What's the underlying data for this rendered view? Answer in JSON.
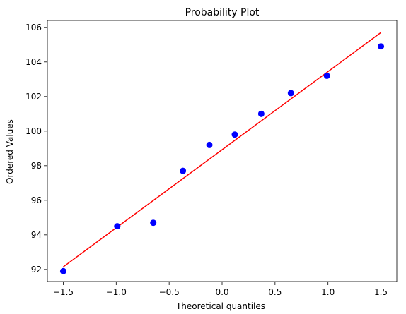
{
  "chart_data": {
    "type": "scatter",
    "title": "Probability Plot",
    "xlabel": "Theoretical quantiles",
    "ylabel": "Ordered Values",
    "xlim": [
      -1.65,
      1.65
    ],
    "ylim": [
      91.3,
      106.4
    ],
    "xticks": [
      -1.5,
      -1.0,
      -0.5,
      0.0,
      0.5,
      1.0,
      1.5
    ],
    "xtick_labels": [
      "−1.5",
      "−1.0",
      "−0.5",
      "0.0",
      "0.5",
      "1.0",
      "1.5"
    ],
    "yticks": [
      92,
      94,
      96,
      98,
      100,
      102,
      104,
      106
    ],
    "ytick_labels": [
      "92",
      "94",
      "96",
      "98",
      "100",
      "102",
      "104",
      "106"
    ],
    "grid": false,
    "series": [
      {
        "kind": "points",
        "color": "#0000ff",
        "x": [
          -1.5,
          -0.99,
          -0.65,
          -0.37,
          -0.12,
          0.12,
          0.37,
          0.65,
          0.99,
          1.5
        ],
        "y": [
          91.9,
          94.5,
          94.7,
          97.7,
          99.2,
          99.8,
          101.0,
          102.2,
          103.2,
          104.9
        ]
      },
      {
        "kind": "fit-line",
        "color": "#ff0000",
        "x": [
          -1.5,
          1.5
        ],
        "y": [
          92.15,
          105.7
        ]
      }
    ]
  }
}
